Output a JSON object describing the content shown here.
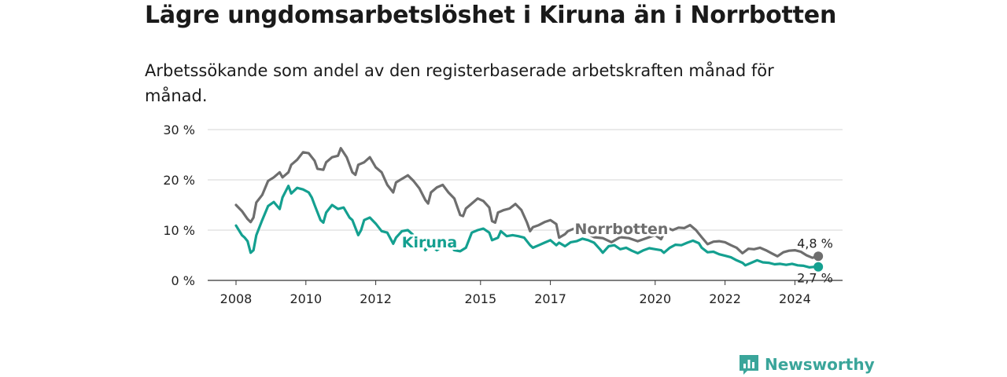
{
  "title": "Lägre ungdomsarbetslöshet i Kiruna än i Norrbotten",
  "subtitle": "Arbetssökande som andel av den registerbaserade arbetskraften månad för månad.",
  "brand": {
    "name": "Newsworthy",
    "color": "#3aa59a",
    "icon": "bar-chart-logo-icon"
  },
  "chart_data": {
    "type": "line",
    "xlabel": "",
    "ylabel": "",
    "ylim": [
      0,
      30
    ],
    "y_ticks": [
      0,
      10,
      20,
      30
    ],
    "y_tick_labels": [
      "0 %",
      "10 %",
      "20 %",
      "30 %"
    ],
    "x_ticks": [
      2008,
      2010,
      2012,
      2015,
      2017,
      2020,
      2022,
      2024
    ],
    "x_tick_labels": [
      "2008",
      "2010",
      "2012",
      "2015",
      "2017",
      "2020",
      "2022",
      "2024"
    ],
    "xlim": [
      2007.6,
      2025.3
    ],
    "grid": true,
    "legend": "inline labels",
    "series": [
      {
        "name": "Norrbotten",
        "color": "#6e6e6e",
        "end_label": "4,8 %",
        "points": [
          [
            2008.0,
            15.0
          ],
          [
            2008.17,
            13.8
          ],
          [
            2008.33,
            12.2
          ],
          [
            2008.42,
            11.6
          ],
          [
            2008.5,
            12.5
          ],
          [
            2008.58,
            15.5
          ],
          [
            2008.75,
            17.0
          ],
          [
            2008.92,
            19.8
          ],
          [
            2009.08,
            20.5
          ],
          [
            2009.25,
            21.5
          ],
          [
            2009.33,
            20.5
          ],
          [
            2009.5,
            21.5
          ],
          [
            2009.58,
            23.0
          ],
          [
            2009.75,
            24.0
          ],
          [
            2009.92,
            25.5
          ],
          [
            2010.08,
            25.3
          ],
          [
            2010.25,
            23.8
          ],
          [
            2010.33,
            22.2
          ],
          [
            2010.5,
            22.0
          ],
          [
            2010.58,
            23.5
          ],
          [
            2010.75,
            24.5
          ],
          [
            2010.92,
            24.8
          ],
          [
            2011.0,
            26.3
          ],
          [
            2011.17,
            24.5
          ],
          [
            2011.33,
            21.5
          ],
          [
            2011.42,
            21.0
          ],
          [
            2011.5,
            23.0
          ],
          [
            2011.67,
            23.5
          ],
          [
            2011.83,
            24.5
          ],
          [
            2012.0,
            22.5
          ],
          [
            2012.17,
            21.5
          ],
          [
            2012.33,
            19.0
          ],
          [
            2012.5,
            17.5
          ],
          [
            2012.58,
            19.5
          ],
          [
            2012.75,
            20.2
          ],
          [
            2012.92,
            20.9
          ],
          [
            2013.08,
            19.8
          ],
          [
            2013.25,
            18.3
          ],
          [
            2013.42,
            16.0
          ],
          [
            2013.5,
            15.3
          ],
          [
            2013.58,
            17.5
          ],
          [
            2013.75,
            18.5
          ],
          [
            2013.92,
            19.0
          ],
          [
            2014.08,
            17.5
          ],
          [
            2014.25,
            16.3
          ],
          [
            2014.42,
            13.0
          ],
          [
            2014.5,
            12.8
          ],
          [
            2014.58,
            14.3
          ],
          [
            2014.75,
            15.3
          ],
          [
            2014.92,
            16.3
          ],
          [
            2015.08,
            15.8
          ],
          [
            2015.25,
            14.5
          ],
          [
            2015.33,
            11.8
          ],
          [
            2015.42,
            11.5
          ],
          [
            2015.5,
            13.5
          ],
          [
            2015.67,
            14.0
          ],
          [
            2015.83,
            14.3
          ],
          [
            2016.0,
            15.2
          ],
          [
            2016.17,
            14.0
          ],
          [
            2016.33,
            11.5
          ],
          [
            2016.42,
            9.8
          ],
          [
            2016.5,
            10.6
          ],
          [
            2016.67,
            11.0
          ],
          [
            2016.83,
            11.6
          ],
          [
            2017.0,
            12.0
          ],
          [
            2017.17,
            11.2
          ],
          [
            2017.25,
            8.5
          ],
          [
            2017.42,
            9.2
          ],
          [
            2017.5,
            9.8
          ],
          [
            2017.75,
            10.5
          ],
          [
            2018.0,
            9.5
          ],
          [
            2018.25,
            8.6
          ],
          [
            2018.5,
            8.4
          ],
          [
            2018.75,
            7.6
          ],
          [
            2019.0,
            8.6
          ],
          [
            2019.25,
            8.4
          ],
          [
            2019.5,
            7.8
          ],
          [
            2019.75,
            8.4
          ],
          [
            2020.0,
            9.0
          ],
          [
            2020.17,
            8.2
          ],
          [
            2020.33,
            10.5
          ],
          [
            2020.5,
            10.0
          ],
          [
            2020.67,
            10.5
          ],
          [
            2020.83,
            10.4
          ],
          [
            2021.0,
            11.0
          ],
          [
            2021.17,
            10.0
          ],
          [
            2021.33,
            8.6
          ],
          [
            2021.5,
            7.2
          ],
          [
            2021.67,
            7.7
          ],
          [
            2021.83,
            7.8
          ],
          [
            2022.0,
            7.6
          ],
          [
            2022.17,
            7.0
          ],
          [
            2022.33,
            6.5
          ],
          [
            2022.5,
            5.4
          ],
          [
            2022.67,
            6.3
          ],
          [
            2022.83,
            6.2
          ],
          [
            2023.0,
            6.5
          ],
          [
            2023.17,
            6.0
          ],
          [
            2023.33,
            5.4
          ],
          [
            2023.5,
            4.8
          ],
          [
            2023.67,
            5.6
          ],
          [
            2023.83,
            5.9
          ],
          [
            2024.0,
            6.0
          ],
          [
            2024.17,
            5.7
          ],
          [
            2024.33,
            5.0
          ],
          [
            2024.5,
            4.5
          ],
          [
            2024.67,
            4.8
          ]
        ]
      },
      {
        "name": "Kiruna",
        "color": "#14a090",
        "end_label": "2,7 %",
        "points": [
          [
            2008.0,
            10.9
          ],
          [
            2008.17,
            9.0
          ],
          [
            2008.25,
            8.5
          ],
          [
            2008.33,
            7.8
          ],
          [
            2008.42,
            5.5
          ],
          [
            2008.5,
            6.0
          ],
          [
            2008.58,
            9.0
          ],
          [
            2008.75,
            12.0
          ],
          [
            2008.92,
            14.8
          ],
          [
            2009.08,
            15.6
          ],
          [
            2009.25,
            14.2
          ],
          [
            2009.33,
            16.5
          ],
          [
            2009.5,
            18.8
          ],
          [
            2009.58,
            17.3
          ],
          [
            2009.75,
            18.4
          ],
          [
            2009.92,
            18.1
          ],
          [
            2010.08,
            17.5
          ],
          [
            2010.17,
            16.5
          ],
          [
            2010.25,
            15.0
          ],
          [
            2010.42,
            12.0
          ],
          [
            2010.5,
            11.5
          ],
          [
            2010.58,
            13.5
          ],
          [
            2010.75,
            15.0
          ],
          [
            2010.92,
            14.2
          ],
          [
            2011.08,
            14.5
          ],
          [
            2011.25,
            12.5
          ],
          [
            2011.33,
            12.0
          ],
          [
            2011.5,
            9.0
          ],
          [
            2011.58,
            10.0
          ],
          [
            2011.67,
            12.0
          ],
          [
            2011.83,
            12.5
          ],
          [
            2012.0,
            11.3
          ],
          [
            2012.17,
            9.8
          ],
          [
            2012.33,
            9.5
          ],
          [
            2012.5,
            7.3
          ],
          [
            2012.58,
            8.5
          ],
          [
            2012.75,
            9.8
          ],
          [
            2012.92,
            10.0
          ],
          [
            2013.08,
            9.0
          ],
          [
            2013.25,
            8.0
          ],
          [
            2013.42,
            6.0
          ],
          [
            2013.58,
            7.0
          ],
          [
            2013.75,
            6.0
          ],
          [
            2013.92,
            6.8
          ],
          [
            2014.08,
            7.5
          ],
          [
            2014.25,
            6.0
          ],
          [
            2014.42,
            5.8
          ],
          [
            2014.58,
            6.5
          ],
          [
            2014.75,
            9.5
          ],
          [
            2014.92,
            10.0
          ],
          [
            2015.08,
            10.3
          ],
          [
            2015.25,
            9.5
          ],
          [
            2015.33,
            8.0
          ],
          [
            2015.5,
            8.5
          ],
          [
            2015.58,
            9.8
          ],
          [
            2015.75,
            8.8
          ],
          [
            2015.92,
            9.0
          ],
          [
            2016.08,
            8.8
          ],
          [
            2016.25,
            8.5
          ],
          [
            2016.42,
            7.0
          ],
          [
            2016.5,
            6.5
          ],
          [
            2016.67,
            7.0
          ],
          [
            2016.83,
            7.5
          ],
          [
            2017.0,
            8.0
          ],
          [
            2017.17,
            7.0
          ],
          [
            2017.25,
            7.5
          ],
          [
            2017.42,
            6.8
          ],
          [
            2017.58,
            7.6
          ],
          [
            2017.75,
            7.8
          ],
          [
            2017.92,
            8.3
          ],
          [
            2018.08,
            8.0
          ],
          [
            2018.25,
            7.5
          ],
          [
            2018.42,
            6.2
          ],
          [
            2018.5,
            5.5
          ],
          [
            2018.67,
            6.8
          ],
          [
            2018.83,
            7.0
          ],
          [
            2019.0,
            6.2
          ],
          [
            2019.17,
            6.5
          ],
          [
            2019.33,
            5.9
          ],
          [
            2019.5,
            5.4
          ],
          [
            2019.67,
            6.0
          ],
          [
            2019.83,
            6.4
          ],
          [
            2020.0,
            6.2
          ],
          [
            2020.17,
            6.0
          ],
          [
            2020.25,
            5.5
          ],
          [
            2020.42,
            6.5
          ],
          [
            2020.58,
            7.1
          ],
          [
            2020.75,
            7.0
          ],
          [
            2020.92,
            7.5
          ],
          [
            2021.08,
            7.9
          ],
          [
            2021.25,
            7.4
          ],
          [
            2021.33,
            6.5
          ],
          [
            2021.5,
            5.6
          ],
          [
            2021.67,
            5.7
          ],
          [
            2021.83,
            5.2
          ],
          [
            2022.0,
            4.9
          ],
          [
            2022.17,
            4.6
          ],
          [
            2022.33,
            4.0
          ],
          [
            2022.5,
            3.5
          ],
          [
            2022.58,
            3.0
          ],
          [
            2022.75,
            3.5
          ],
          [
            2022.92,
            4.0
          ],
          [
            2023.08,
            3.6
          ],
          [
            2023.25,
            3.5
          ],
          [
            2023.42,
            3.2
          ],
          [
            2023.58,
            3.3
          ],
          [
            2023.75,
            3.1
          ],
          [
            2023.92,
            3.3
          ],
          [
            2024.08,
            3.0
          ],
          [
            2024.25,
            2.9
          ],
          [
            2024.42,
            2.6
          ],
          [
            2024.58,
            2.7
          ],
          [
            2024.67,
            2.7
          ]
        ]
      }
    ]
  }
}
